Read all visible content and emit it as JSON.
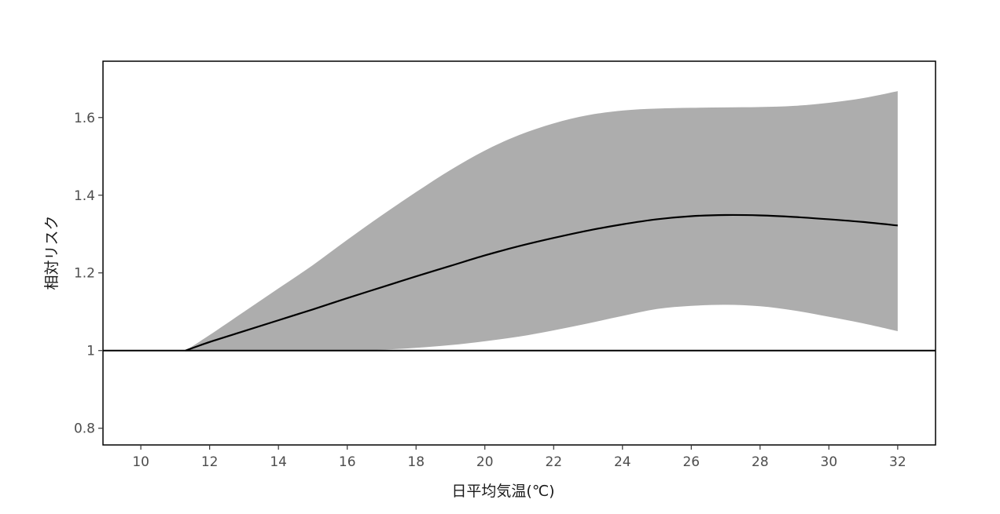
{
  "chart_data": {
    "type": "line",
    "title": "",
    "xlabel": "日平均気温(℃)",
    "ylabel": "相対リスク",
    "xlim": [
      8.9,
      33.1
    ],
    "ylim": [
      0.757,
      1.745
    ],
    "xticks": [
      10,
      12,
      14,
      16,
      18,
      20,
      22,
      24,
      26,
      28,
      30,
      32
    ],
    "xtick_labels": [
      "10",
      "12",
      "14",
      "16",
      "18",
      "20",
      "22",
      "24",
      "26",
      "28",
      "30",
      "32"
    ],
    "yticks": [
      0.8,
      1.0,
      1.2,
      1.4,
      1.6
    ],
    "ytick_labels": [
      "0.8",
      "1",
      "1.2",
      "1.4",
      "1.6"
    ],
    "reference_line": 1.0,
    "grid": false,
    "legend": "none",
    "colors": {
      "band": "#adadad",
      "line": "#000000",
      "frame": "#000000",
      "background": "#ffffff"
    },
    "series": [
      {
        "x": [
          11.3,
          12,
          13,
          14,
          15,
          16,
          17,
          18,
          19,
          20,
          21,
          22,
          23,
          24,
          25,
          26,
          27,
          28,
          29,
          30,
          31,
          32
        ],
        "values": [
          1.0,
          1.022,
          1.05,
          1.078,
          1.106,
          1.135,
          1.163,
          1.191,
          1.218,
          1.245,
          1.269,
          1.29,
          1.309,
          1.325,
          1.338,
          1.346,
          1.349,
          1.348,
          1.344,
          1.338,
          1.331,
          1.322
        ],
        "lower": [
          1.0,
          1.0,
          1.0,
          1.0,
          1.0,
          1.0,
          1.002,
          1.007,
          1.014,
          1.024,
          1.036,
          1.052,
          1.07,
          1.089,
          1.107,
          1.115,
          1.118,
          1.114,
          1.103,
          1.087,
          1.07,
          1.05
        ],
        "upper": [
          1.0,
          1.04,
          1.1,
          1.16,
          1.22,
          1.285,
          1.348,
          1.408,
          1.465,
          1.515,
          1.555,
          1.585,
          1.606,
          1.618,
          1.623,
          1.625,
          1.626,
          1.627,
          1.63,
          1.638,
          1.65,
          1.668
        ]
      }
    ]
  }
}
